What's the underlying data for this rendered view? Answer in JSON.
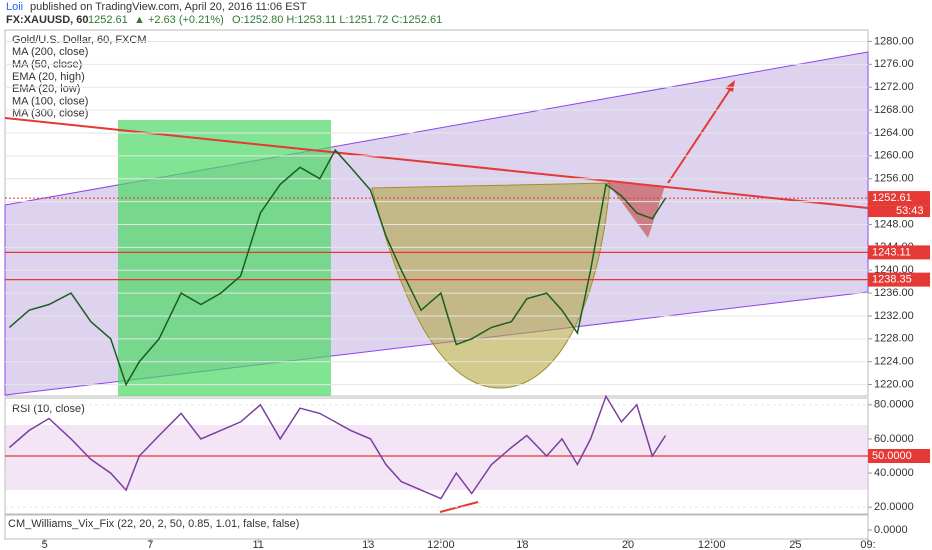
{
  "header": {
    "author": "Loii",
    "published": "published on TradingView.com, April 20, 2016 11:06 EST",
    "symbol": "FX:XAUUSD, 60",
    "last": "1252.61",
    "change": "▲ +2.63 (+0.21%)",
    "ohlc": "O:1252.80 H:1253.11 L:1251.72 C:1252.61"
  },
  "legend": [
    "Gold/U.S. Dollar, 60, FXCM",
    "MA (200, close)",
    "MA (50, close)",
    "EMA (20, high)",
    "EMA (20, low)",
    "MA (100, close)",
    "MA (300, close)"
  ],
  "chart_data": [
    {
      "type": "line",
      "title": "Gold/U.S. Dollar, 60, FXCM",
      "x": [
        2,
        11,
        20,
        30,
        39,
        48,
        55,
        61,
        70,
        80,
        89,
        98,
        107,
        116,
        125,
        134,
        143,
        150,
        157,
        166,
        173,
        180,
        189,
        198,
        205,
        212,
        221,
        230,
        237,
        246,
        253,
        260,
        266,
        273,
        280,
        287,
        294,
        300
      ],
      "series": [
        {
          "name": "XAUUSD",
          "color": "#1b5e20",
          "values": [
            1230,
            1233,
            1234,
            1236,
            1231,
            1228,
            1220,
            1224,
            1228,
            1236,
            1234,
            1236,
            1239,
            1250,
            1255,
            1258,
            1256,
            1261,
            1258,
            1254,
            1246,
            1240,
            1233,
            1236,
            1227,
            1228,
            1230,
            1231,
            1235,
            1236,
            1233,
            1229,
            1240,
            1255,
            1253,
            1250,
            1249,
            1252.61
          ]
        }
      ],
      "xlim": [
        0,
        392
      ],
      "xticks": [
        {
          "value": 18,
          "label": "5"
        },
        {
          "value": 66,
          "label": "7"
        },
        {
          "value": 115,
          "label": "11"
        },
        {
          "value": 165,
          "label": "13"
        },
        {
          "value": 198,
          "label": "12:00"
        },
        {
          "value": 235,
          "label": "18"
        },
        {
          "value": 283,
          "label": "20"
        },
        {
          "value": 321,
          "label": "12:00"
        },
        {
          "value": 359,
          "label": "25"
        },
        {
          "value": 392,
          "label": "09:"
        }
      ],
      "ylim": [
        1218,
        1282
      ],
      "yticks": [
        {
          "value": 1220,
          "label": "1220.00"
        },
        {
          "value": 1224,
          "label": "1224.00"
        },
        {
          "value": 1228,
          "label": "1228.00"
        },
        {
          "value": 1232,
          "label": "1232.00"
        },
        {
          "value": 1236,
          "label": "1236.00"
        },
        {
          "value": 1240,
          "label": "1240.00"
        },
        {
          "value": 1244,
          "label": "1244.00"
        },
        {
          "value": 1248,
          "label": "1248.00"
        },
        {
          "value": 1252,
          "label": "1252.00"
        },
        {
          "value": 1256,
          "label": "1256.00"
        },
        {
          "value": 1260,
          "label": "1260.00"
        },
        {
          "value": 1264,
          "label": "1264.00"
        },
        {
          "value": 1268,
          "label": "1268.00"
        },
        {
          "value": 1272,
          "label": "1272.00"
        },
        {
          "value": 1276,
          "label": "1276.00"
        },
        {
          "value": 1280,
          "label": "1280.00"
        }
      ],
      "levels": [
        {
          "value": 1252.61,
          "label": "1252.61",
          "color": "#e53935"
        },
        {
          "value": 1243.11,
          "label": "1243.11",
          "color": "#e53935"
        },
        {
          "value": 1238.35,
          "label": "1238.35",
          "color": "#e53935"
        }
      ],
      "countdown": "53:43"
    },
    {
      "type": "line",
      "title": "RSI (10, close)",
      "x": [
        2,
        11,
        20,
        30,
        39,
        48,
        55,
        61,
        70,
        80,
        89,
        98,
        107,
        116,
        125,
        134,
        143,
        150,
        157,
        166,
        173,
        180,
        189,
        198,
        205,
        212,
        221,
        230,
        237,
        246,
        253,
        260,
        266,
        273,
        280,
        287,
        294,
        300
      ],
      "series": [
        {
          "name": "RSI",
          "color": "#7b3fa0",
          "values": [
            55,
            65,
            72,
            60,
            48,
            40,
            30,
            50,
            62,
            75,
            60,
            65,
            70,
            80,
            60,
            78,
            75,
            70,
            65,
            60,
            45,
            35,
            30,
            25,
            40,
            28,
            45,
            55,
            62,
            50,
            60,
            45,
            60,
            85,
            70,
            80,
            50,
            62
          ]
        }
      ],
      "xlim": [
        0,
        392
      ],
      "ylim": [
        16,
        84
      ],
      "yticks": [
        {
          "value": 20,
          "label": "20.0000"
        },
        {
          "value": 40,
          "label": "40.0000"
        },
        {
          "value": 60,
          "label": "60.0000"
        },
        {
          "value": 80,
          "label": "80.0000"
        }
      ],
      "levels": [
        {
          "value": 50,
          "label": "50.0000",
          "color": "#e53935"
        }
      ]
    },
    {
      "type": "text",
      "title": "CM_Williams_Vix_Fix (22, 20, 2, 50, 0.85, 1.01, false, false)",
      "yticks": [
        {
          "value": 0,
          "label": "0.0000"
        }
      ]
    }
  ]
}
